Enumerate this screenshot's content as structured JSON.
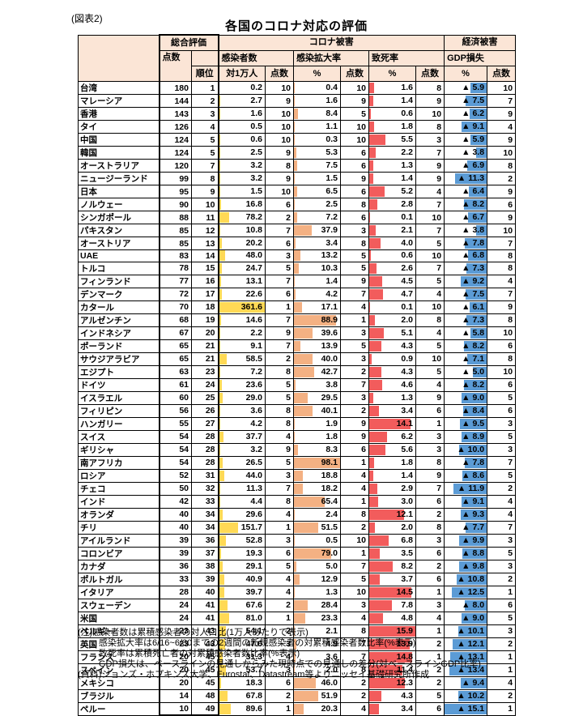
{
  "figure_label": "(図表2)",
  "title": "各国のコロナ対応の評価",
  "header": {
    "group_overall": "総合評価",
    "group_corona": "コロナ被害",
    "group_economic": "経済被害",
    "score": "点数",
    "rank": "順位",
    "infected": "感染者数",
    "per_10k": "対1万人",
    "spread_rate": "感染拡大率",
    "fatality_rate": "致死率",
    "gdp_loss": "GDP損失",
    "pct": "%",
    "points": "点数"
  },
  "colors": {
    "header_bg": "#FBE5D6",
    "grid": "#000000"
  },
  "chart_data": {
    "type": "table",
    "title": "各国のコロナ対応の評価",
    "columns": [
      "国名",
      "総合評価 点数",
      "総合評価 順位",
      "感染者数 対1万人",
      "感染者数 点数",
      "感染拡大率 %",
      "感染拡大率 点数",
      "致死率 %",
      "致死率 点数",
      "GDP損失 %",
      "GDP損失 点数"
    ],
    "gdp_negative_prefix": "▲",
    "bar_scales": {
      "infected_max": 361.6,
      "spread_max": 98.1,
      "fatality_max": 15.9,
      "gdp_max": 15.1
    },
    "bar_colors": {
      "infected": "#FFD955",
      "spread": "#F4B183",
      "fatality": "#F25C5C",
      "gdp": "#5B9BD5"
    },
    "rows": [
      [
        "台湾",
        "180",
        "1",
        "0.2",
        "10",
        "0.4",
        "10",
        "1.6",
        "8",
        "5.9",
        "10"
      ],
      [
        "マレーシア",
        "144",
        "2",
        "2.7",
        "9",
        "1.6",
        "9",
        "1.4",
        "9",
        "7.5",
        "7"
      ],
      [
        "香港",
        "143",
        "3",
        "1.6",
        "10",
        "8.4",
        "5",
        "0.6",
        "10",
        "6.2",
        "9"
      ],
      [
        "タイ",
        "126",
        "4",
        "0.5",
        "10",
        "1.1",
        "10",
        "1.8",
        "8",
        "9.1",
        "4"
      ],
      [
        "中国",
        "124",
        "5",
        "0.6",
        "10",
        "0.3",
        "10",
        "5.5",
        "3",
        "5.9",
        "9"
      ],
      [
        "韓国",
        "124",
        "5",
        "2.5",
        "9",
        "5.3",
        "6",
        "2.2",
        "7",
        "3.8",
        "10"
      ],
      [
        "オーストラリア",
        "120",
        "7",
        "3.2",
        "8",
        "7.5",
        "6",
        "1.3",
        "9",
        "6.9",
        "8"
      ],
      [
        "ニュージーランド",
        "99",
        "8",
        "3.2",
        "9",
        "1.5",
        "9",
        "1.4",
        "9",
        "11.3",
        "2"
      ],
      [
        "日本",
        "95",
        "9",
        "1.5",
        "10",
        "6.5",
        "6",
        "5.2",
        "4",
        "6.4",
        "9"
      ],
      [
        "ノルウェー",
        "90",
        "10",
        "16.8",
        "6",
        "2.5",
        "8",
        "2.8",
        "7",
        "8.2",
        "6"
      ],
      [
        "シンガポール",
        "88",
        "11",
        "78.2",
        "2",
        "7.2",
        "6",
        "0.1",
        "10",
        "6.7",
        "9"
      ],
      [
        "パキスタン",
        "85",
        "12",
        "10.8",
        "7",
        "37.9",
        "3",
        "2.1",
        "7",
        "3.8",
        "10"
      ],
      [
        "オーストリア",
        "85",
        "13",
        "20.2",
        "6",
        "3.4",
        "8",
        "4.0",
        "5",
        "7.8",
        "7"
      ],
      [
        "UAE",
        "83",
        "14",
        "48.0",
        "3",
        "13.2",
        "5",
        "0.6",
        "10",
        "6.8",
        "8"
      ],
      [
        "トルコ",
        "78",
        "15",
        "24.7",
        "5",
        "10.3",
        "5",
        "2.6",
        "7",
        "7.3",
        "8"
      ],
      [
        "フィンランド",
        "77",
        "16",
        "13.1",
        "7",
        "1.4",
        "9",
        "4.5",
        "5",
        "9.2",
        "4"
      ],
      [
        "デンマーク",
        "72",
        "17",
        "22.6",
        "6",
        "4.2",
        "7",
        "4.7",
        "4",
        "7.5",
        "7"
      ],
      [
        "カタール",
        "70",
        "18",
        "361.6",
        "1",
        "17.1",
        "4",
        "0.1",
        "10",
        "6.1",
        "9"
      ],
      [
        "アルゼンチン",
        "68",
        "19",
        "14.6",
        "7",
        "88.9",
        "1",
        "2.0",
        "8",
        "7.3",
        "8"
      ],
      [
        "インドネシア",
        "67",
        "20",
        "2.2",
        "9",
        "39.6",
        "3",
        "5.1",
        "4",
        "5.8",
        "10"
      ],
      [
        "ポーランド",
        "65",
        "21",
        "9.1",
        "7",
        "13.9",
        "5",
        "4.3",
        "5",
        "8.2",
        "6"
      ],
      [
        "サウジアラビア",
        "65",
        "21",
        "58.5",
        "2",
        "40.0",
        "3",
        "0.9",
        "10",
        "7.1",
        "8"
      ],
      [
        "エジプト",
        "63",
        "23",
        "7.2",
        "8",
        "42.7",
        "2",
        "4.3",
        "5",
        "5.0",
        "10"
      ],
      [
        "ドイツ",
        "61",
        "24",
        "23.6",
        "5",
        "3.8",
        "7",
        "4.6",
        "4",
        "8.2",
        "6"
      ],
      [
        "イスラエル",
        "60",
        "25",
        "29.0",
        "5",
        "29.5",
        "3",
        "1.3",
        "9",
        "9.0",
        "5"
      ],
      [
        "フィリピン",
        "56",
        "26",
        "3.6",
        "8",
        "40.1",
        "2",
        "3.4",
        "6",
        "8.4",
        "6"
      ],
      [
        "ハンガリー",
        "55",
        "27",
        "4.2",
        "8",
        "1.9",
        "9",
        "14.1",
        "1",
        "9.5",
        "3"
      ],
      [
        "スイス",
        "54",
        "28",
        "37.7",
        "4",
        "1.8",
        "9",
        "6.2",
        "3",
        "8.9",
        "5"
      ],
      [
        "ギリシャ",
        "54",
        "28",
        "3.2",
        "9",
        "8.3",
        "6",
        "5.6",
        "3",
        "10.0",
        "3"
      ],
      [
        "南アフリカ",
        "54",
        "28",
        "26.5",
        "5",
        "98.1",
        "1",
        "1.8",
        "8",
        "7.8",
        "7"
      ],
      [
        "ロシア",
        "52",
        "31",
        "44.0",
        "3",
        "18.8",
        "4",
        "1.4",
        "9",
        "8.6",
        "5"
      ],
      [
        "チェコ",
        "50",
        "32",
        "11.3",
        "7",
        "18.2",
        "4",
        "2.9",
        "7",
        "11.9",
        "2"
      ],
      [
        "インド",
        "42",
        "33",
        "4.4",
        "8",
        "65.4",
        "1",
        "3.0",
        "6",
        "9.1",
        "4"
      ],
      [
        "オランダ",
        "40",
        "34",
        "29.6",
        "4",
        "2.4",
        "8",
        "12.1",
        "2",
        "9.3",
        "4"
      ],
      [
        "チリ",
        "40",
        "34",
        "151.7",
        "1",
        "51.5",
        "2",
        "2.0",
        "8",
        "7.7",
        "7"
      ],
      [
        "アイルランド",
        "39",
        "36",
        "52.8",
        "3",
        "0.5",
        "10",
        "6.8",
        "3",
        "9.9",
        "3"
      ],
      [
        "コロンビア",
        "39",
        "37",
        "19.3",
        "6",
        "79.0",
        "1",
        "3.5",
        "6",
        "8.8",
        "5"
      ],
      [
        "カナダ",
        "36",
        "38",
        "29.1",
        "5",
        "5.0",
        "7",
        "8.2",
        "2",
        "9.8",
        "3"
      ],
      [
        "ポルトガル",
        "33",
        "39",
        "40.9",
        "4",
        "12.9",
        "5",
        "3.7",
        "6",
        "10.8",
        "2"
      ],
      [
        "イタリア",
        "28",
        "40",
        "39.7",
        "4",
        "1.3",
        "10",
        "14.5",
        "1",
        "12.5",
        "1"
      ],
      [
        "スウェーデン",
        "24",
        "41",
        "67.6",
        "2",
        "28.4",
        "3",
        "7.8",
        "3",
        "8.0",
        "6"
      ],
      [
        "米国",
        "24",
        "41",
        "81.0",
        "1",
        "23.3",
        "4",
        "4.8",
        "4",
        "9.0",
        "5"
      ],
      [
        "ベルギー",
        "23",
        "43",
        "54.1",
        "2",
        "2.1",
        "8",
        "15.9",
        "1",
        "10.1",
        "3"
      ],
      [
        "英国",
        "23",
        "43",
        "47.6",
        "3",
        "4.9",
        "7",
        "13.9",
        "2",
        "12.1",
        "2"
      ],
      [
        "フランス",
        "20",
        "45",
        "31.3",
        "4",
        "3.6",
        "7",
        "14.8",
        "1",
        "13.1",
        "1"
      ],
      [
        "スペイン",
        "20",
        "45",
        "53.7",
        "3",
        "2.0",
        "8",
        "11.4",
        "2",
        "13.4",
        "1"
      ],
      [
        "メキシコ",
        "20",
        "45",
        "18.3",
        "6",
        "46.0",
        "2",
        "12.3",
        "2",
        "9.4",
        "4"
      ],
      [
        "ブラジル",
        "14",
        "48",
        "67.8",
        "2",
        "51.9",
        "2",
        "4.3",
        "5",
        "10.2",
        "2"
      ],
      [
        "ペルー",
        "10",
        "49",
        "89.6",
        "1",
        "20.3",
        "4",
        "3.4",
        "6",
        "15.1",
        "1"
      ]
    ]
  },
  "notes": [
    "(注)感染者数は累積感染者の対人口比(1万人あたりで表示)",
    "感染拡大率は6/16~6/30までの2週間の新規感染者の対累積感染者数比率(%表示)",
    "致死率は累積死亡者の対累積感染者数比率(%表示)",
    "GDP損失は、ベースラインの見通しからみた現時点での見通しの差分(対ベースラインGDP比率)",
    "(資料)ジョンズ・ホプキンズ大学、Eurostat、Datastream等よりニッセイ基礎研究所作成"
  ]
}
